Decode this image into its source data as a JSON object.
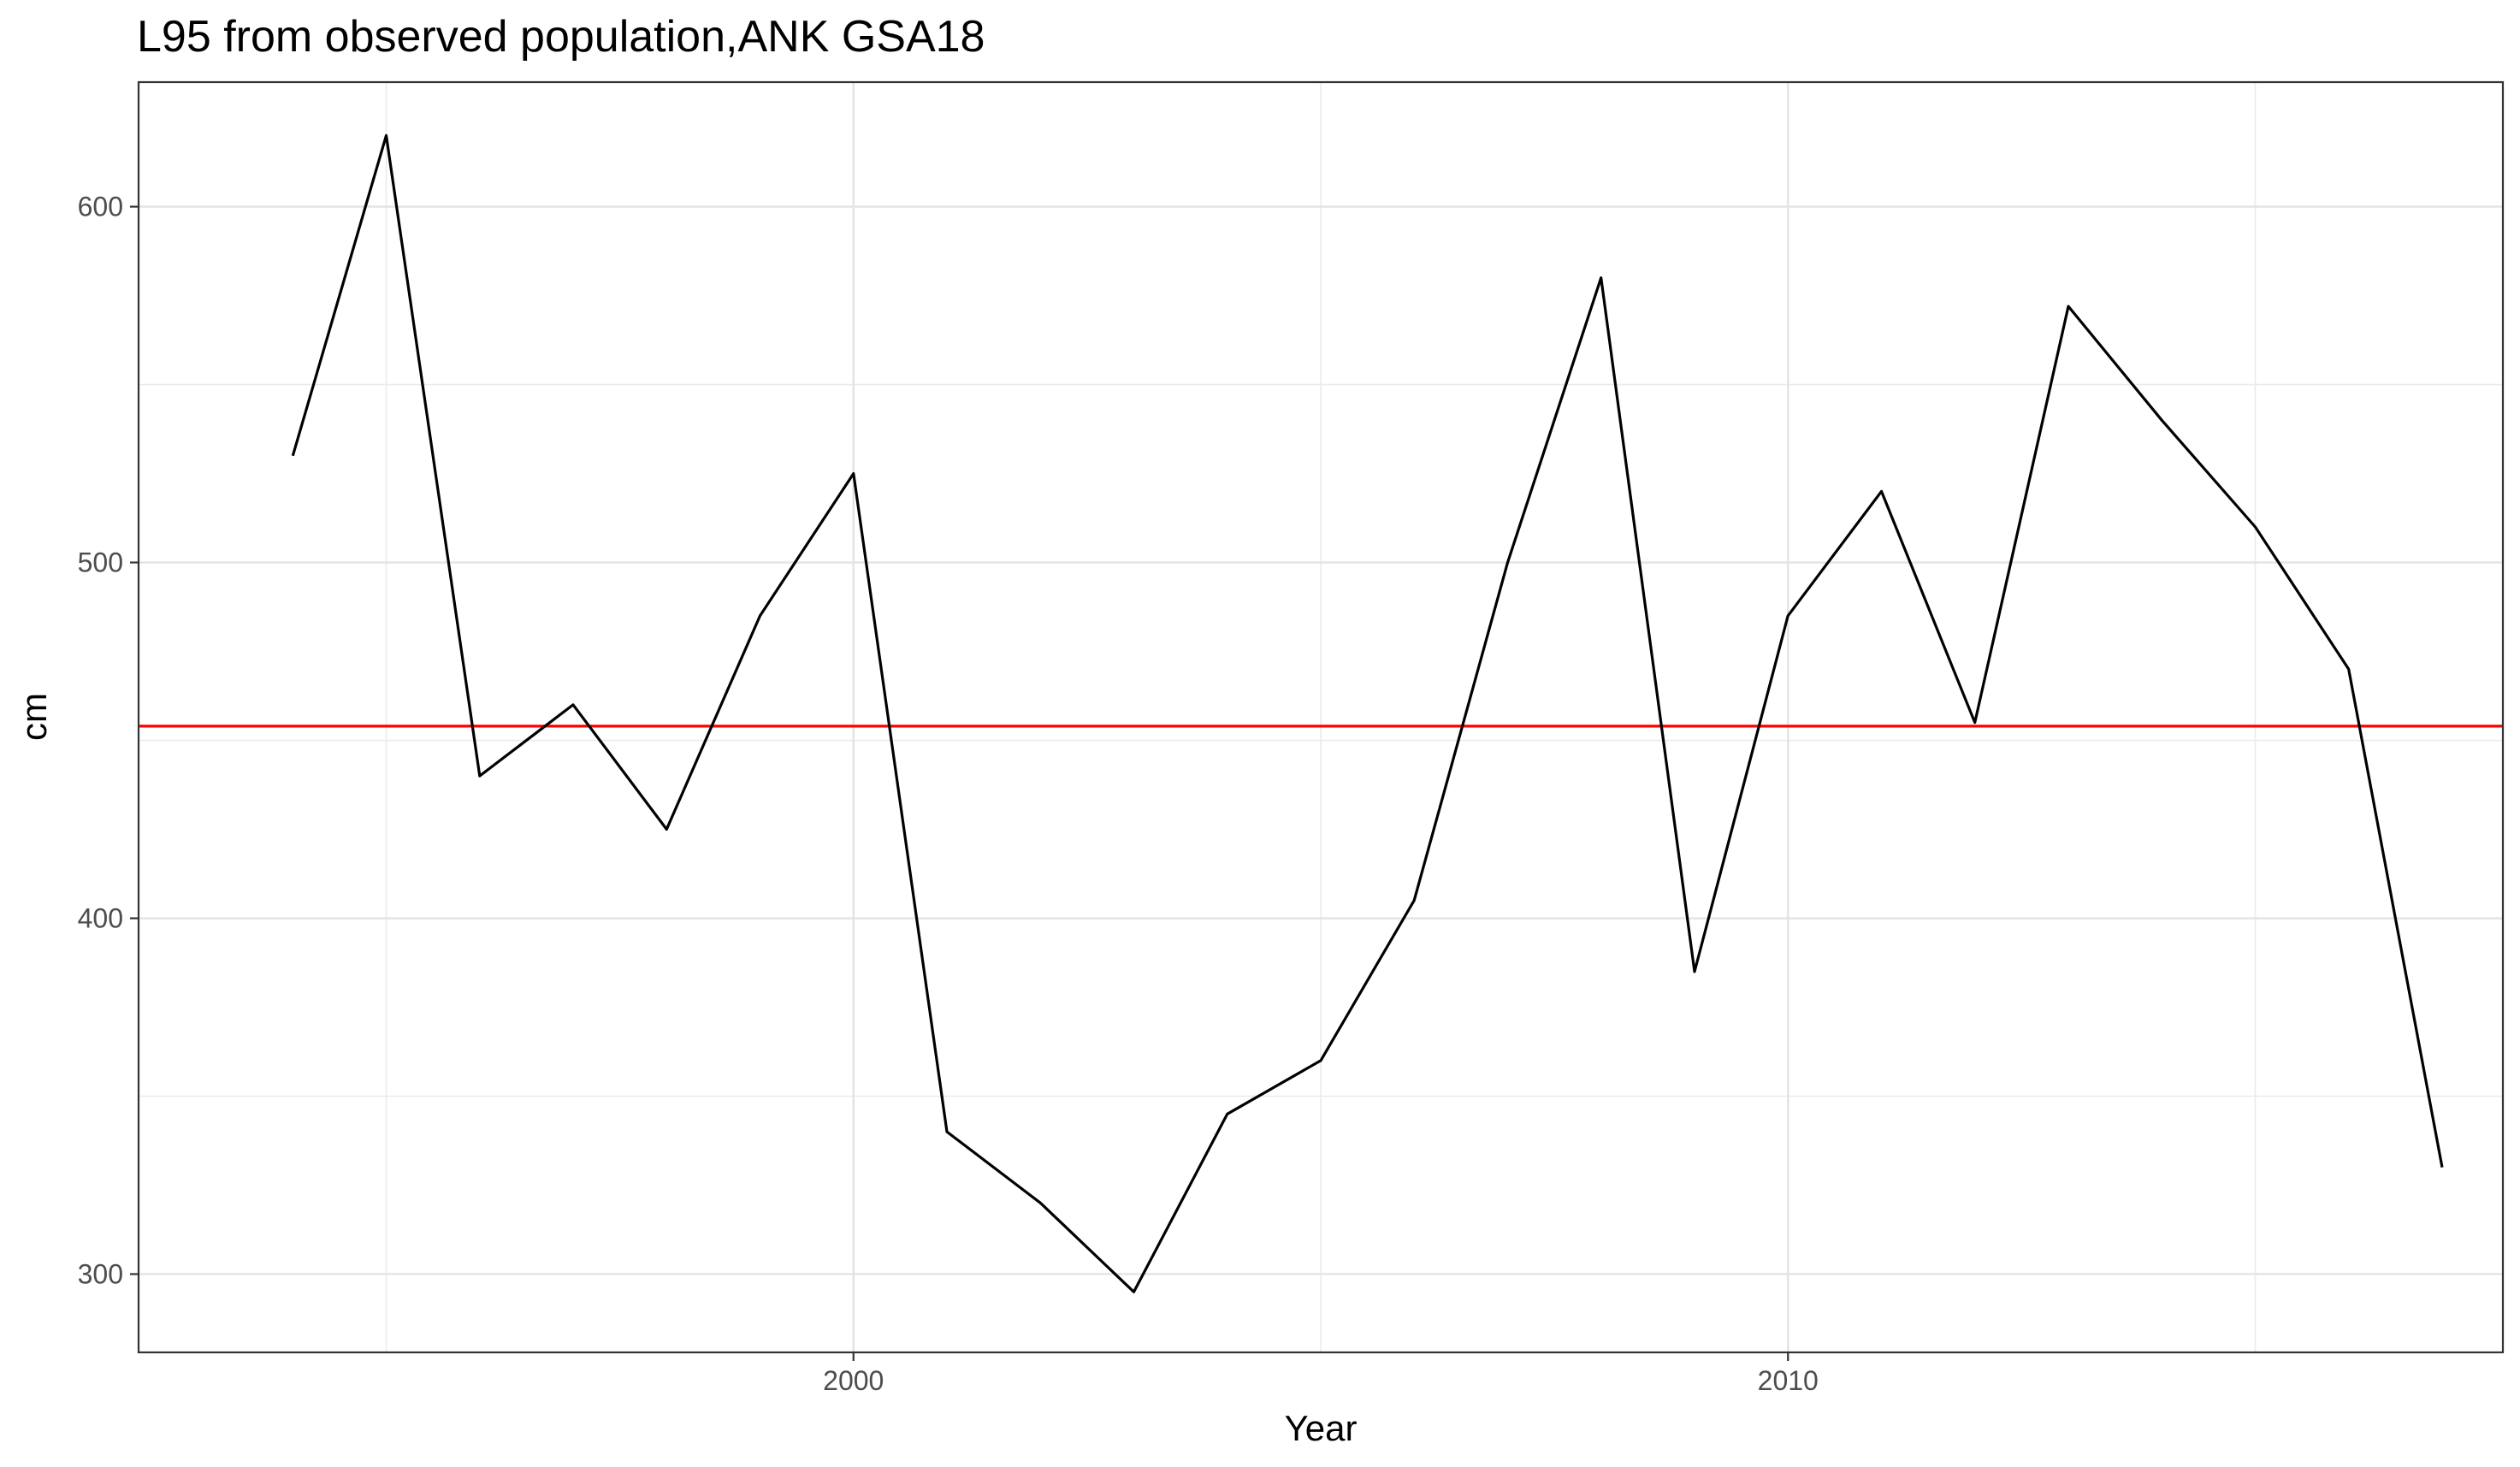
{
  "chart_data": {
    "type": "line",
    "title": "L95 from observed population,ANK GSA18",
    "xlabel": "Year",
    "ylabel": "cm",
    "xlim": [
      1992.35,
      2017.65
    ],
    "ylim": [
      278,
      635
    ],
    "xticks": [
      2000,
      2010
    ],
    "xticks_minor": [
      1995,
      2005,
      2015
    ],
    "yticks": [
      300,
      400,
      500,
      600
    ],
    "yticks_minor": [
      350,
      450,
      550
    ],
    "grid": true,
    "series": [
      {
        "color": "#000000",
        "x": [
          1994,
          1995,
          1996,
          1997,
          1998,
          1999,
          2000,
          2001,
          2002,
          2003,
          2004,
          2005,
          2006,
          2007,
          2008,
          2009,
          2010,
          2011,
          2012,
          2013,
          2014,
          2015,
          2016,
          2017
        ],
        "y": [
          530,
          620,
          440,
          460,
          425,
          485,
          525,
          340,
          320,
          295,
          345,
          360,
          405,
          500,
          580,
          385,
          485,
          520,
          455,
          572,
          540,
          510,
          470,
          330
        ]
      }
    ],
    "reference_line": {
      "y": 454,
      "color": "#ff0000"
    }
  }
}
